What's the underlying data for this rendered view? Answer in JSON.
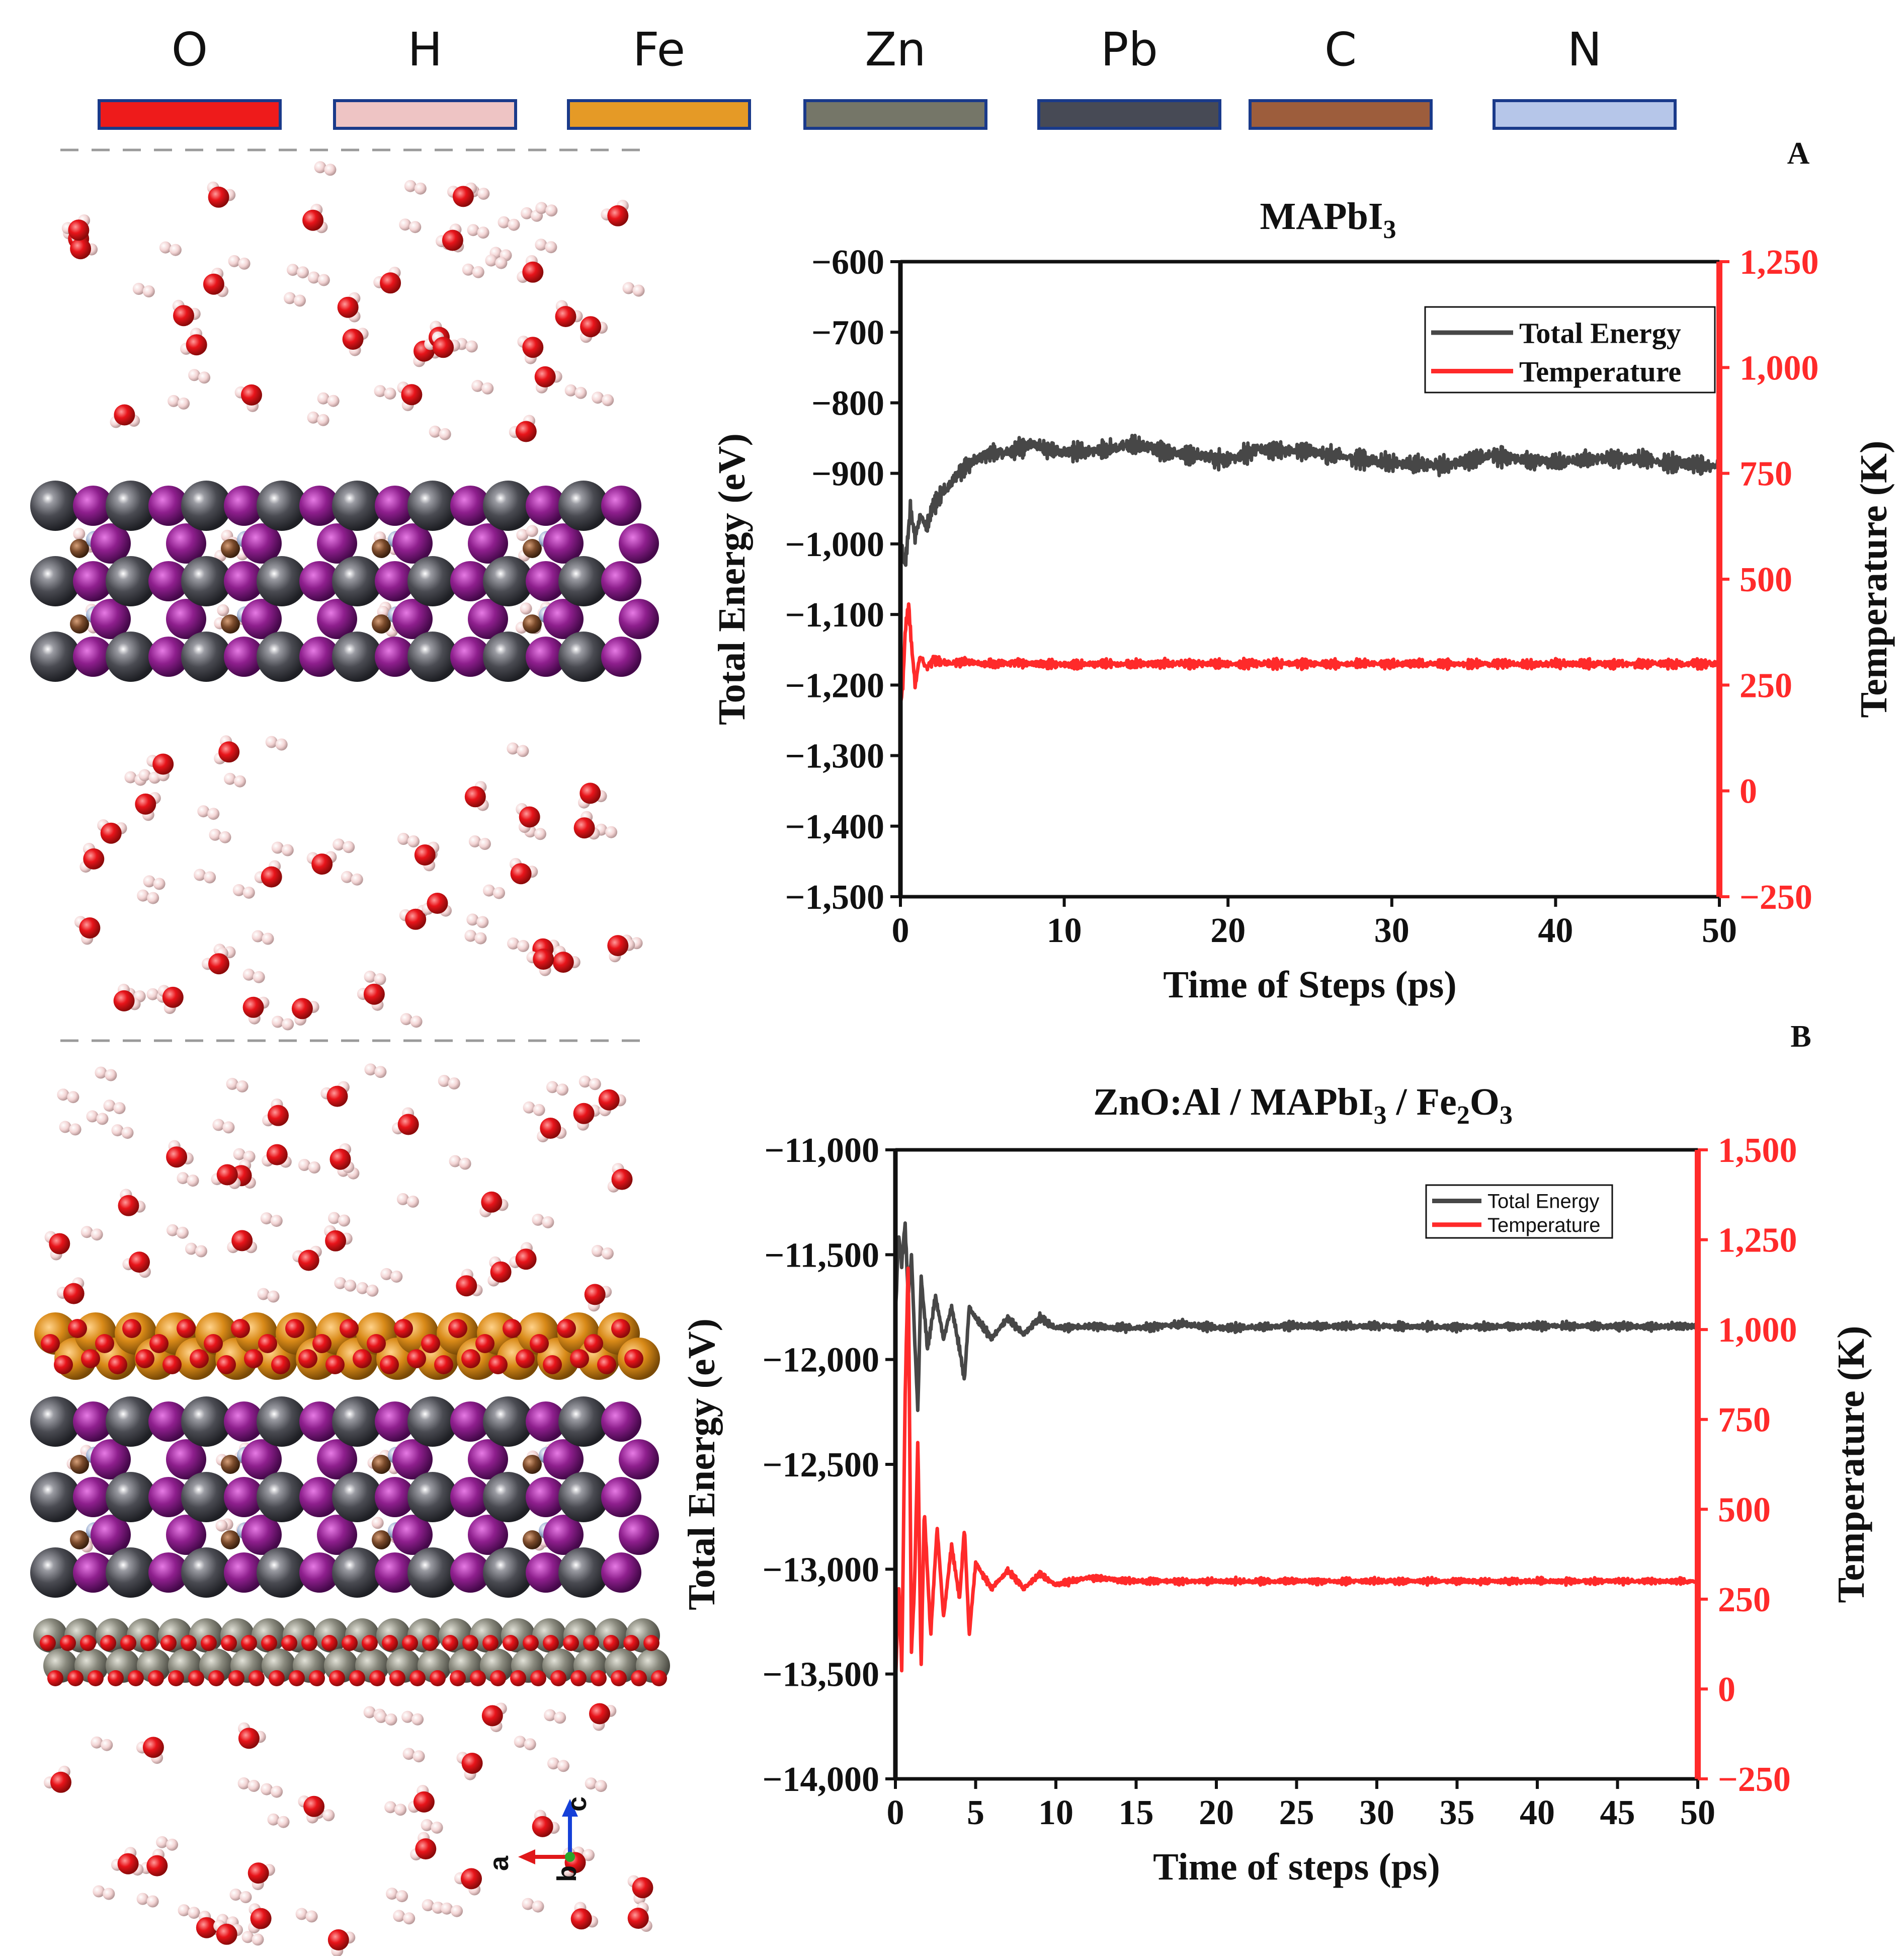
{
  "element_legend": [
    {
      "symbol": "O",
      "color": "#ee1b1b"
    },
    {
      "symbol": "H",
      "color": "#eec4c4"
    },
    {
      "symbol": "Fe",
      "color": "#e59a26"
    },
    {
      "symbol": "Zn",
      "color": "#757668"
    },
    {
      "symbol": "Pb",
      "color": "#474a55"
    },
    {
      "symbol": "C",
      "color": "#9d5d3c"
    },
    {
      "symbol": "N",
      "color": "#b6c6e9"
    }
  ],
  "atom_colors": {
    "O": "#e8141a",
    "H": "#f3d4d4",
    "Fe": "#d98a18",
    "Zn": "#8a8a7e",
    "Pb": "#4a4b52",
    "I": "#8e1f8d",
    "C": "#7a4a2b",
    "N": "#a9b9d8"
  },
  "axes_indicator": {
    "a": "a",
    "b": "b",
    "c": "c"
  },
  "chart_data": [
    {
      "type": "line",
      "panel": "A",
      "title_main": "MAPbI",
      "title_sub": "3",
      "xlabel": "Time of Steps (ps)",
      "ylabel": "Total Energy (eV)",
      "y2label": "Temperature (K)",
      "xlim": [
        0,
        50
      ],
      "ylim": [
        -1500,
        -600
      ],
      "y2lim": [
        -250,
        1250
      ],
      "xticks": [
        0,
        10,
        20,
        30,
        40,
        50
      ],
      "xtick_labels": [
        "0",
        "10",
        "20",
        "30",
        "40",
        "50"
      ],
      "yticks": [
        -600,
        -700,
        -800,
        -900,
        -1000,
        -1100,
        -1200,
        -1300,
        -1400,
        -1500
      ],
      "ytick_labels": [
        "−600",
        "−700",
        "−800",
        "−900",
        "−1,000",
        "−1,100",
        "−1,200",
        "−1,300",
        "−1,400",
        "−1,500"
      ],
      "y2ticks": [
        1250,
        1000,
        750,
        500,
        250,
        0,
        -250
      ],
      "y2tick_labels": [
        "1,250",
        "1,000",
        "750",
        "500",
        "250",
        "0",
        "−250"
      ],
      "legend": [
        "Total Energy",
        "Temperature"
      ],
      "series": [
        {
          "name": "Total Energy",
          "axis": "left",
          "color": "#474747",
          "x": [
            0,
            0.3,
            0.6,
            0.9,
            1.2,
            1.6,
            2,
            2.5,
            3,
            3.5,
            4,
            5,
            6,
            7,
            8,
            9,
            10,
            12,
            14,
            15,
            17,
            20,
            22,
            25,
            28,
            30,
            33,
            36,
            38,
            40,
            43,
            45,
            47,
            50
          ],
          "values": [
            -1000,
            -1030,
            -950,
            -990,
            -960,
            -975,
            -945,
            -930,
            -915,
            -900,
            -890,
            -875,
            -870,
            -868,
            -858,
            -866,
            -870,
            -868,
            -860,
            -862,
            -872,
            -880,
            -866,
            -870,
            -880,
            -885,
            -890,
            -875,
            -880,
            -885,
            -878,
            -880,
            -885,
            -890
          ],
          "noise": 12
        },
        {
          "name": "Temperature",
          "axis": "right",
          "color": "#ff2a2a",
          "x": [
            0,
            0.15,
            0.3,
            0.5,
            0.7,
            0.9,
            1.2,
            1.6,
            2,
            3,
            4,
            5,
            7,
            10,
            15,
            20,
            30,
            40,
            50
          ],
          "values": [
            200,
            250,
            380,
            440,
            330,
            250,
            320,
            290,
            310,
            300,
            305,
            300,
            302,
            298,
            300,
            300,
            300,
            300,
            300
          ],
          "noise": 10
        }
      ]
    },
    {
      "type": "line",
      "panel": "B",
      "title_parts": [
        {
          "text": "ZnO:Al / MAPbI",
          "sub": false
        },
        {
          "text": "3",
          "sub": true
        },
        {
          "text": " / Fe",
          "sub": false
        },
        {
          "text": "2",
          "sub": true
        },
        {
          "text": "O",
          "sub": false
        },
        {
          "text": "3",
          "sub": true
        }
      ],
      "xlabel": "Time of  steps (ps)",
      "ylabel": "Total Energy (eV)",
      "y2label": "Temperature (K)",
      "xlim": [
        0,
        50
      ],
      "ylim": [
        -14000,
        -11000
      ],
      "y2lim": [
        -250,
        1500
      ],
      "xticks": [
        0,
        5,
        10,
        15,
        20,
        25,
        30,
        35,
        40,
        45,
        50
      ],
      "xtick_labels": [
        "0",
        "5",
        "10",
        "15",
        "20",
        "25",
        "30",
        "35",
        "40",
        "45",
        "50"
      ],
      "yticks": [
        -11000,
        -11500,
        -12000,
        -12500,
        -13000,
        -13500,
        -14000
      ],
      "ytick_labels": [
        "−11,000",
        "−11,500",
        "−12,000",
        "−12,500",
        "−13,000",
        "−13,500",
        "−14,000"
      ],
      "y2ticks": [
        1500,
        1250,
        1000,
        750,
        500,
        250,
        0,
        -250
      ],
      "y2tick_labels": [
        "1,500",
        "1,250",
        "1,000",
        "750",
        "500",
        "250",
        "0",
        "−250"
      ],
      "legend": [
        "Total Energy",
        "Temperature"
      ],
      "series": [
        {
          "name": "Total Energy",
          "axis": "left",
          "color": "#474747",
          "x": [
            0,
            0.2,
            0.4,
            0.6,
            0.8,
            1.0,
            1.2,
            1.4,
            1.6,
            2,
            2.5,
            3,
            3.5,
            4,
            4.3,
            4.6,
            5,
            6,
            7,
            8,
            9,
            10,
            12,
            15,
            18,
            20,
            25,
            30,
            35,
            40,
            45,
            50
          ],
          "values": [
            -11800,
            -11400,
            -11550,
            -11350,
            -11700,
            -11500,
            -11900,
            -12250,
            -11600,
            -11950,
            -11700,
            -11900,
            -11750,
            -11950,
            -12100,
            -11750,
            -11800,
            -11900,
            -11800,
            -11880,
            -11800,
            -11850,
            -11840,
            -11850,
            -11830,
            -11850,
            -11840,
            -11840,
            -11845,
            -11840,
            -11842,
            -11842
          ],
          "noise": 18
        },
        {
          "name": "Temperature",
          "axis": "right",
          "color": "#ff2a2a",
          "x": [
            0,
            0.2,
            0.4,
            0.6,
            0.8,
            1.0,
            1.2,
            1.4,
            1.6,
            1.8,
            2.2,
            2.6,
            3,
            3.5,
            4,
            4.3,
            4.6,
            5,
            6,
            7,
            8,
            9,
            10,
            12,
            15,
            20,
            30,
            40,
            50
          ],
          "values": [
            0,
            300,
            50,
            800,
            1200,
            100,
            300,
            700,
            50,
            500,
            150,
            450,
            200,
            400,
            250,
            450,
            150,
            350,
            280,
            330,
            280,
            320,
            290,
            310,
            300,
            300,
            300,
            300,
            300
          ],
          "noise": 8
        }
      ]
    }
  ]
}
